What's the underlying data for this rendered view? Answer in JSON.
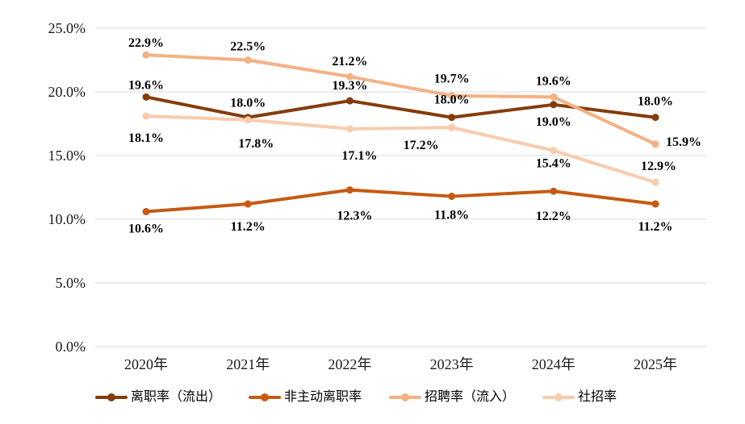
{
  "chart_data": {
    "type": "line",
    "title": "",
    "xlabel": "",
    "ylabel": "",
    "grid": true,
    "legend_position": "bottom",
    "background_color": "#FFFFFF",
    "gridline_color": "#DBDBDB",
    "data_label_color": "#000000",
    "axis_text_color": "#1a1a1a",
    "ylim": [
      0,
      25
    ],
    "y_ticks": [
      {
        "value": 25,
        "label": "25.0%"
      },
      {
        "value": 20,
        "label": "20.0%"
      },
      {
        "value": 15,
        "label": "15.0%"
      },
      {
        "value": 10,
        "label": "10.0%"
      },
      {
        "value": 5,
        "label": "5.0%"
      },
      {
        "value": 0,
        "label": "0.0%"
      }
    ],
    "categories": [
      "2020年",
      "2021年",
      "2022年",
      "2023年",
      "2024年",
      "2025年"
    ],
    "series": [
      {
        "name": "离职率（流出）",
        "color": "#843C0C",
        "values": [
          19.6,
          18.0,
          19.3,
          18.0,
          19.0,
          18.0
        ],
        "labels": [
          "19.6%",
          "18.0%",
          "19.3%",
          "18.0%",
          "19.0%",
          "18.0%"
        ],
        "label_dx": [
          0,
          0,
          0,
          0,
          0,
          0
        ],
        "label_dy": [
          -10,
          -13,
          -14,
          -17,
          26,
          -15
        ],
        "label_anchor": [
          "middle",
          "middle",
          "middle",
          "middle",
          "middle",
          "middle"
        ]
      },
      {
        "name": "非主动离职率",
        "color": "#C55A11",
        "values": [
          10.6,
          11.2,
          12.3,
          11.8,
          12.2,
          11.2
        ],
        "labels": [
          "10.6%",
          "11.2%",
          "12.3%",
          "11.8%",
          "12.2%",
          "11.2%"
        ],
        "label_dx": [
          0,
          0,
          6,
          0,
          0,
          0
        ],
        "label_dy": [
          26,
          33,
          37,
          28,
          36,
          33
        ],
        "label_anchor": [
          "middle",
          "middle",
          "middle",
          "middle",
          "middle",
          "middle"
        ]
      },
      {
        "name": "招聘率（流入）",
        "color": "#F4B183",
        "values": [
          22.9,
          22.5,
          21.2,
          19.7,
          19.6,
          15.9
        ],
        "labels": [
          "22.9%",
          "22.5%",
          "21.2%",
          "19.7%",
          "19.6%",
          "15.9%"
        ],
        "label_dx": [
          0,
          0,
          0,
          0,
          0,
          13
        ],
        "label_dy": [
          -10,
          -12,
          -14,
          -16,
          -15,
          2
        ],
        "label_anchor": [
          "middle",
          "middle",
          "middle",
          "middle",
          "middle",
          "start"
        ]
      },
      {
        "name": "社招率",
        "color": "#F8CBAD",
        "values": [
          18.1,
          17.8,
          17.1,
          17.2,
          15.4,
          12.9
        ],
        "labels": [
          "18.1%",
          "17.8%",
          "17.1%",
          "17.2%",
          "15.4%",
          "12.9%"
        ],
        "label_dx": [
          0,
          10,
          12,
          -38,
          0,
          4
        ],
        "label_dy": [
          32,
          34,
          38,
          27,
          21,
          -15
        ],
        "label_anchor": [
          "middle",
          "middle",
          "middle",
          "middle",
          "middle",
          "middle"
        ]
      }
    ]
  }
}
